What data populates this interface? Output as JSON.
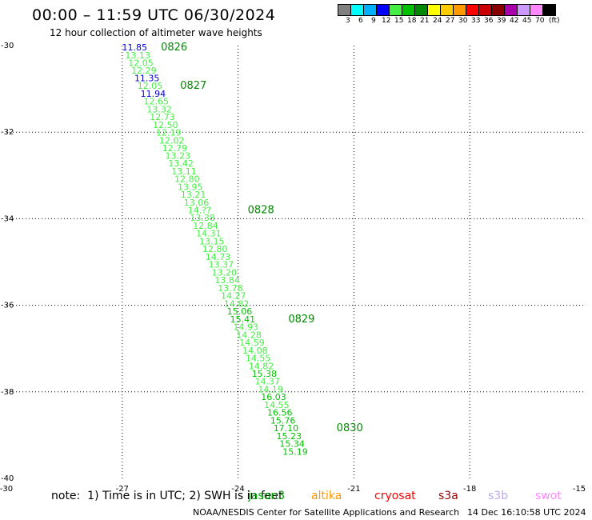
{
  "header": {
    "title": "00:00 – 11:59 UTC 06/30/2024",
    "subtitle": "12 hour collection of altimeter wave heights"
  },
  "legend": {
    "unit": "(ft)",
    "bins": [
      {
        "label": "3",
        "color": "#808080"
      },
      {
        "label": "6",
        "color": "#00ffff"
      },
      {
        "label": "9",
        "color": "#00b0ff"
      },
      {
        "label": "12",
        "color": "#0000ff"
      },
      {
        "label": "15",
        "color": "#44ee44"
      },
      {
        "label": "18",
        "color": "#00c000"
      },
      {
        "label": "21",
        "color": "#008800"
      },
      {
        "label": "24",
        "color": "#ffff00"
      },
      {
        "label": "27",
        "color": "#ffcc00"
      },
      {
        "label": "30",
        "color": "#ff9900"
      },
      {
        "label": "33",
        "color": "#ff0000"
      },
      {
        "label": "36",
        "color": "#cc0000"
      },
      {
        "label": "39",
        "color": "#880000"
      },
      {
        "label": "42",
        "color": "#aa00aa"
      },
      {
        "label": "45",
        "color": "#cc99ff"
      },
      {
        "label": "70",
        "color": "#ff88ff"
      },
      {
        "label": "",
        "color": "#000000"
      }
    ]
  },
  "map": {
    "lon_range": [
      -30,
      -15
    ],
    "lat_range": [
      -40,
      -30
    ],
    "lon_ticks": [
      {
        "value": -30,
        "label": "-30"
      },
      {
        "value": -27,
        "label": "-27"
      },
      {
        "value": -24,
        "label": "-24"
      },
      {
        "value": -21,
        "label": "-21"
      },
      {
        "value": -18,
        "label": "-18"
      },
      {
        "value": -15,
        "label": "-15"
      }
    ],
    "lat_ticks": [
      {
        "value": -30,
        "label": "-30"
      },
      {
        "value": -32,
        "label": "-32"
      },
      {
        "value": -34,
        "label": "-34"
      },
      {
        "value": -36,
        "label": "-36"
      },
      {
        "value": -38,
        "label": "-38"
      },
      {
        "value": -40,
        "label": "-40"
      }
    ],
    "track": [
      {
        "lon": -26.68,
        "lat": -30.02,
        "swh": "11.85",
        "color": "#0000cc"
      },
      {
        "lon": -26.6,
        "lat": -30.2,
        "swh": "13.13",
        "color": "#44ee44"
      },
      {
        "lon": -26.52,
        "lat": -30.38,
        "swh": "12.05",
        "color": "#44ee44"
      },
      {
        "lon": -26.44,
        "lat": -30.55,
        "swh": "12.29",
        "color": "#44ee44"
      },
      {
        "lon": -26.36,
        "lat": -30.73,
        "swh": "11.35",
        "color": "#0000cc"
      },
      {
        "lon": -26.28,
        "lat": -30.91,
        "swh": "12.05",
        "color": "#44ee44"
      },
      {
        "lon": -26.2,
        "lat": -31.09,
        "swh": "11.94",
        "color": "#0000cc"
      },
      {
        "lon": -26.12,
        "lat": -31.27,
        "swh": "12.65",
        "color": "#44ee44"
      },
      {
        "lon": -26.04,
        "lat": -31.45,
        "swh": "13.32",
        "color": "#44ee44"
      },
      {
        "lon": -25.96,
        "lat": -31.63,
        "swh": "12.73",
        "color": "#44ee44"
      },
      {
        "lon": -25.88,
        "lat": -31.81,
        "swh": "12.50",
        "color": "#44ee44"
      },
      {
        "lon": -25.8,
        "lat": -31.99,
        "swh": "12.19",
        "color": "#44ee44"
      },
      {
        "lon": -25.72,
        "lat": -32.17,
        "swh": "12.02",
        "color": "#44ee44"
      },
      {
        "lon": -25.64,
        "lat": -32.35,
        "swh": "12.79",
        "color": "#44ee44"
      },
      {
        "lon": -25.56,
        "lat": -32.52,
        "swh": "13.23",
        "color": "#44ee44"
      },
      {
        "lon": -25.48,
        "lat": -32.7,
        "swh": "13.42",
        "color": "#44ee44"
      },
      {
        "lon": -25.4,
        "lat": -32.88,
        "swh": "13.11",
        "color": "#44ee44"
      },
      {
        "lon": -25.32,
        "lat": -33.06,
        "swh": "12.80",
        "color": "#44ee44"
      },
      {
        "lon": -25.24,
        "lat": -33.24,
        "swh": "13.95",
        "color": "#44ee44"
      },
      {
        "lon": -25.16,
        "lat": -33.42,
        "swh": "13.21",
        "color": "#44ee44"
      },
      {
        "lon": -25.08,
        "lat": -33.6,
        "swh": "13.06",
        "color": "#44ee44"
      },
      {
        "lon": -25.0,
        "lat": -33.78,
        "swh": "14.??",
        "color": "#44ee44"
      },
      {
        "lon": -24.92,
        "lat": -33.96,
        "swh": "13.38",
        "color": "#44ee44"
      },
      {
        "lon": -24.84,
        "lat": -34.14,
        "swh": "12.84",
        "color": "#44ee44"
      },
      {
        "lon": -24.76,
        "lat": -34.32,
        "swh": "14.31",
        "color": "#44ee44"
      },
      {
        "lon": -24.68,
        "lat": -34.5,
        "swh": "13.15",
        "color": "#44ee44"
      },
      {
        "lon": -24.6,
        "lat": -34.68,
        "swh": "12.80",
        "color": "#44ee44"
      },
      {
        "lon": -24.52,
        "lat": -34.86,
        "swh": "14.73",
        "color": "#44ee44"
      },
      {
        "lon": -24.44,
        "lat": -35.04,
        "swh": "13.37",
        "color": "#44ee44"
      },
      {
        "lon": -24.36,
        "lat": -35.22,
        "swh": "13.20",
        "color": "#44ee44"
      },
      {
        "lon": -24.28,
        "lat": -35.4,
        "swh": "13.84",
        "color": "#44ee44"
      },
      {
        "lon": -24.2,
        "lat": -35.58,
        "swh": "13.78",
        "color": "#44ee44"
      },
      {
        "lon": -24.12,
        "lat": -35.76,
        "swh": "14.27",
        "color": "#44ee44"
      },
      {
        "lon": -24.04,
        "lat": -35.94,
        "swh": "14.82",
        "color": "#44ee44"
      },
      {
        "lon": -23.96,
        "lat": -36.12,
        "swh": "15.06",
        "color": "#00c000"
      },
      {
        "lon": -23.88,
        "lat": -36.3,
        "swh": "15.41",
        "color": "#00c000"
      },
      {
        "lon": -23.8,
        "lat": -36.48,
        "swh": "14.93",
        "color": "#44ee44"
      },
      {
        "lon": -23.72,
        "lat": -36.66,
        "swh": "14.28",
        "color": "#44ee44"
      },
      {
        "lon": -23.64,
        "lat": -36.84,
        "swh": "14.59",
        "color": "#44ee44"
      },
      {
        "lon": -23.56,
        "lat": -37.02,
        "swh": "14.08",
        "color": "#44ee44"
      },
      {
        "lon": -23.48,
        "lat": -37.2,
        "swh": "14.55",
        "color": "#44ee44"
      },
      {
        "lon": -23.4,
        "lat": -37.38,
        "swh": "14.82",
        "color": "#44ee44"
      },
      {
        "lon": -23.32,
        "lat": -37.56,
        "swh": "15.38",
        "color": "#00c000"
      },
      {
        "lon": -23.24,
        "lat": -37.74,
        "swh": "14.37",
        "color": "#44ee44"
      },
      {
        "lon": -23.16,
        "lat": -37.92,
        "swh": "14.19",
        "color": "#44ee44"
      },
      {
        "lon": -23.08,
        "lat": -38.1,
        "swh": "16.03",
        "color": "#00c000"
      },
      {
        "lon": -23.0,
        "lat": -38.28,
        "swh": "14.55",
        "color": "#44ee44"
      },
      {
        "lon": -22.92,
        "lat": -38.46,
        "swh": "16.56",
        "color": "#00c000"
      },
      {
        "lon": -22.84,
        "lat": -38.64,
        "swh": "15.76",
        "color": "#00c000"
      },
      {
        "lon": -22.76,
        "lat": -38.82,
        "swh": "17.10",
        "color": "#00c000"
      },
      {
        "lon": -22.68,
        "lat": -39.0,
        "swh": "15.23",
        "color": "#00c000"
      },
      {
        "lon": -22.6,
        "lat": -39.18,
        "swh": "15.34",
        "color": "#00c000"
      },
      {
        "lon": -22.52,
        "lat": -39.36,
        "swh": "15.19",
        "color": "#00c000"
      }
    ],
    "day_labels": [
      {
        "lon": -26.0,
        "lat": -30.02,
        "label": "0826"
      },
      {
        "lon": -25.5,
        "lat": -30.91,
        "label": "0827"
      },
      {
        "lon": -23.75,
        "lat": -33.78,
        "label": "0828"
      },
      {
        "lon": -22.7,
        "lat": -36.3,
        "label": "0829"
      },
      {
        "lon": -21.45,
        "lat": -38.82,
        "label": "0830"
      }
    ]
  },
  "footer": {
    "note": "note:  1) Time is in UTC; 2) SWH is in feet",
    "satellites": [
      {
        "name": "jason3",
        "color": "#00aa00"
      },
      {
        "name": "altika",
        "color": "#ff9900"
      },
      {
        "name": "cryosat",
        "color": "#ff0000"
      },
      {
        "name": "s3a",
        "color": "#990000"
      },
      {
        "name": "s3b",
        "color": "#bbaaee"
      },
      {
        "name": "swot",
        "color": "#ff88ff"
      }
    ],
    "credit": "NOAA/NESDIS Center for Satellite Applications and Research",
    "timestamp": "14 Dec 16:10:58 UTC 2024"
  }
}
